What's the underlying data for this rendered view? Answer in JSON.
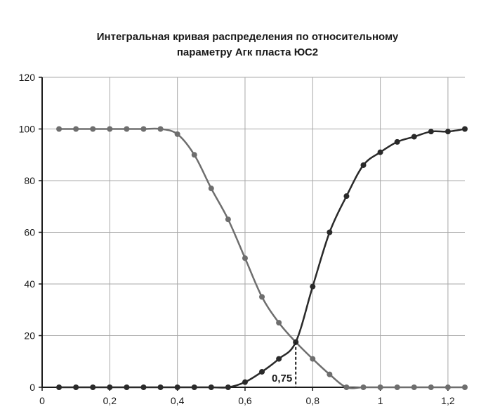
{
  "chart_data": {
    "type": "line",
    "title_lines": [
      "Интегральная кривая распределения по относительному",
      "параметру Агк пласта ЮС2"
    ],
    "xlim": [
      0,
      1.25
    ],
    "ylim": [
      0,
      120
    ],
    "x_ticks": [
      0,
      0.2,
      0.4,
      0.6,
      0.8,
      1,
      1.2
    ],
    "x_tick_labels": [
      "0",
      "0,2",
      "0,4",
      "0,6",
      "0,8",
      "1",
      "1,2"
    ],
    "y_ticks": [
      0,
      20,
      40,
      60,
      80,
      100,
      120
    ],
    "y_tick_labels": [
      "0",
      "20",
      "40",
      "60",
      "80",
      "100",
      "120"
    ],
    "grid": true,
    "series": [
      {
        "color": "#6e6e6e",
        "x": [
          0.05,
          0.1,
          0.15,
          0.2,
          0.25,
          0.3,
          0.35,
          0.4,
          0.45,
          0.5,
          0.55,
          0.6,
          0.65,
          0.7,
          0.75,
          0.8,
          0.85,
          0.9,
          0.95,
          1.0,
          1.05,
          1.1,
          1.15,
          1.2,
          1.25
        ],
        "y": [
          100,
          100,
          100,
          100,
          100,
          100,
          100,
          98,
          90,
          77,
          65,
          50,
          35,
          25,
          17.5,
          11,
          5,
          0,
          0,
          0,
          0,
          0,
          0,
          0,
          0
        ]
      },
      {
        "color": "#2a2a2a",
        "x": [
          0.05,
          0.1,
          0.15,
          0.2,
          0.25,
          0.3,
          0.35,
          0.4,
          0.45,
          0.5,
          0.55,
          0.6,
          0.65,
          0.7,
          0.75,
          0.8,
          0.85,
          0.9,
          0.95,
          1.0,
          1.05,
          1.1,
          1.15,
          1.2,
          1.25
        ],
        "y": [
          0,
          0,
          0,
          0,
          0,
          0,
          0,
          0,
          0,
          0,
          0,
          2,
          6,
          11,
          17.5,
          39,
          60,
          74,
          86,
          91,
          95,
          97,
          99,
          99,
          100
        ]
      }
    ],
    "annotation": {
      "text": "0,75",
      "x": 0.75,
      "y": 17.5
    }
  }
}
